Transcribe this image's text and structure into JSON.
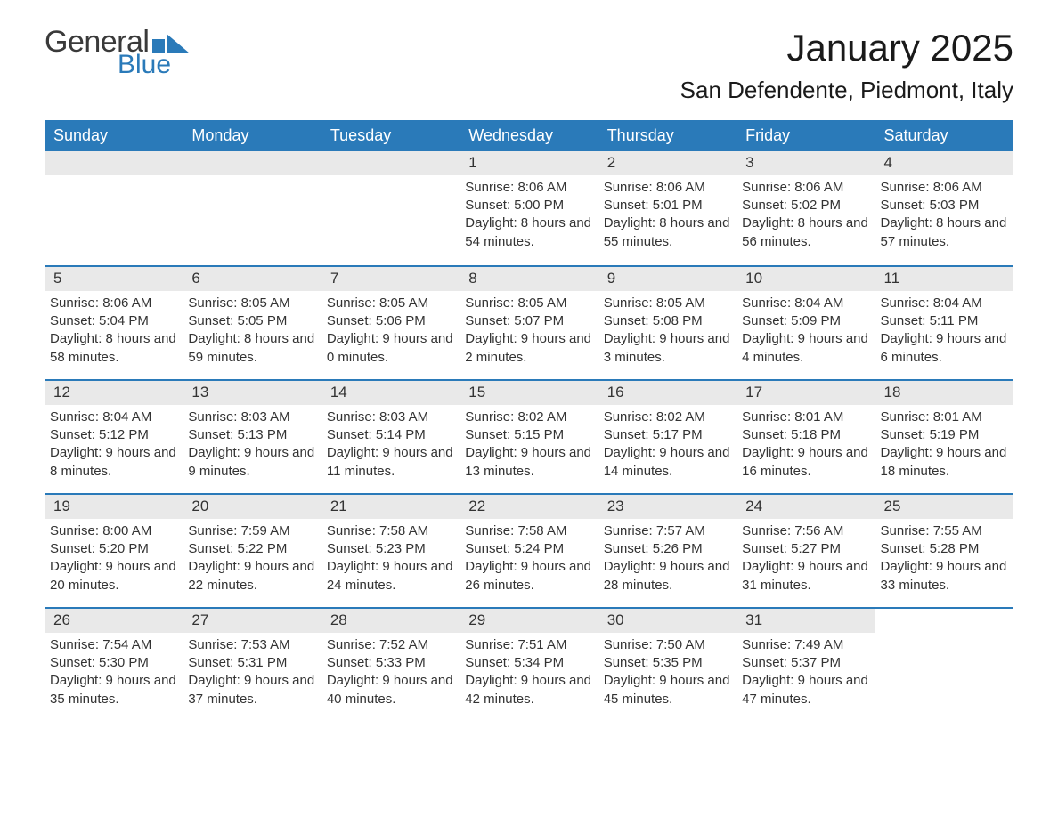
{
  "brand": {
    "word1": "General",
    "word2": "Blue",
    "flag_color": "#2a7ab9",
    "text_gray": "#3a3a3a"
  },
  "title": "January 2025",
  "location": "San Defendente, Piedmont, Italy",
  "colors": {
    "header_bg": "#2a7ab9",
    "header_text": "#ffffff",
    "band_bg": "#e9e9e9",
    "body_text": "#333333",
    "page_bg": "#ffffff",
    "week_border": "#2a7ab9"
  },
  "layout": {
    "columns": 7,
    "header_fontsize": 18,
    "title_fontsize": 42,
    "location_fontsize": 26,
    "body_fontsize": 15
  },
  "day_headers": [
    "Sunday",
    "Monday",
    "Tuesday",
    "Wednesday",
    "Thursday",
    "Friday",
    "Saturday"
  ],
  "weeks": [
    [
      {
        "blank": true
      },
      {
        "blank": true
      },
      {
        "blank": true
      },
      {
        "n": "1",
        "sr": "Sunrise: 8:06 AM",
        "ss": "Sunset: 5:00 PM",
        "dl": "Daylight: 8 hours and 54 minutes."
      },
      {
        "n": "2",
        "sr": "Sunrise: 8:06 AM",
        "ss": "Sunset: 5:01 PM",
        "dl": "Daylight: 8 hours and 55 minutes."
      },
      {
        "n": "3",
        "sr": "Sunrise: 8:06 AM",
        "ss": "Sunset: 5:02 PM",
        "dl": "Daylight: 8 hours and 56 minutes."
      },
      {
        "n": "4",
        "sr": "Sunrise: 8:06 AM",
        "ss": "Sunset: 5:03 PM",
        "dl": "Daylight: 8 hours and 57 minutes."
      }
    ],
    [
      {
        "n": "5",
        "sr": "Sunrise: 8:06 AM",
        "ss": "Sunset: 5:04 PM",
        "dl": "Daylight: 8 hours and 58 minutes."
      },
      {
        "n": "6",
        "sr": "Sunrise: 8:05 AM",
        "ss": "Sunset: 5:05 PM",
        "dl": "Daylight: 8 hours and 59 minutes."
      },
      {
        "n": "7",
        "sr": "Sunrise: 8:05 AM",
        "ss": "Sunset: 5:06 PM",
        "dl": "Daylight: 9 hours and 0 minutes."
      },
      {
        "n": "8",
        "sr": "Sunrise: 8:05 AM",
        "ss": "Sunset: 5:07 PM",
        "dl": "Daylight: 9 hours and 2 minutes."
      },
      {
        "n": "9",
        "sr": "Sunrise: 8:05 AM",
        "ss": "Sunset: 5:08 PM",
        "dl": "Daylight: 9 hours and 3 minutes."
      },
      {
        "n": "10",
        "sr": "Sunrise: 8:04 AM",
        "ss": "Sunset: 5:09 PM",
        "dl": "Daylight: 9 hours and 4 minutes."
      },
      {
        "n": "11",
        "sr": "Sunrise: 8:04 AM",
        "ss": "Sunset: 5:11 PM",
        "dl": "Daylight: 9 hours and 6 minutes."
      }
    ],
    [
      {
        "n": "12",
        "sr": "Sunrise: 8:04 AM",
        "ss": "Sunset: 5:12 PM",
        "dl": "Daylight: 9 hours and 8 minutes."
      },
      {
        "n": "13",
        "sr": "Sunrise: 8:03 AM",
        "ss": "Sunset: 5:13 PM",
        "dl": "Daylight: 9 hours and 9 minutes."
      },
      {
        "n": "14",
        "sr": "Sunrise: 8:03 AM",
        "ss": "Sunset: 5:14 PM",
        "dl": "Daylight: 9 hours and 11 minutes."
      },
      {
        "n": "15",
        "sr": "Sunrise: 8:02 AM",
        "ss": "Sunset: 5:15 PM",
        "dl": "Daylight: 9 hours and 13 minutes."
      },
      {
        "n": "16",
        "sr": "Sunrise: 8:02 AM",
        "ss": "Sunset: 5:17 PM",
        "dl": "Daylight: 9 hours and 14 minutes."
      },
      {
        "n": "17",
        "sr": "Sunrise: 8:01 AM",
        "ss": "Sunset: 5:18 PM",
        "dl": "Daylight: 9 hours and 16 minutes."
      },
      {
        "n": "18",
        "sr": "Sunrise: 8:01 AM",
        "ss": "Sunset: 5:19 PM",
        "dl": "Daylight: 9 hours and 18 minutes."
      }
    ],
    [
      {
        "n": "19",
        "sr": "Sunrise: 8:00 AM",
        "ss": "Sunset: 5:20 PM",
        "dl": "Daylight: 9 hours and 20 minutes."
      },
      {
        "n": "20",
        "sr": "Sunrise: 7:59 AM",
        "ss": "Sunset: 5:22 PM",
        "dl": "Daylight: 9 hours and 22 minutes."
      },
      {
        "n": "21",
        "sr": "Sunrise: 7:58 AM",
        "ss": "Sunset: 5:23 PM",
        "dl": "Daylight: 9 hours and 24 minutes."
      },
      {
        "n": "22",
        "sr": "Sunrise: 7:58 AM",
        "ss": "Sunset: 5:24 PM",
        "dl": "Daylight: 9 hours and 26 minutes."
      },
      {
        "n": "23",
        "sr": "Sunrise: 7:57 AM",
        "ss": "Sunset: 5:26 PM",
        "dl": "Daylight: 9 hours and 28 minutes."
      },
      {
        "n": "24",
        "sr": "Sunrise: 7:56 AM",
        "ss": "Sunset: 5:27 PM",
        "dl": "Daylight: 9 hours and 31 minutes."
      },
      {
        "n": "25",
        "sr": "Sunrise: 7:55 AM",
        "ss": "Sunset: 5:28 PM",
        "dl": "Daylight: 9 hours and 33 minutes."
      }
    ],
    [
      {
        "n": "26",
        "sr": "Sunrise: 7:54 AM",
        "ss": "Sunset: 5:30 PM",
        "dl": "Daylight: 9 hours and 35 minutes."
      },
      {
        "n": "27",
        "sr": "Sunrise: 7:53 AM",
        "ss": "Sunset: 5:31 PM",
        "dl": "Daylight: 9 hours and 37 minutes."
      },
      {
        "n": "28",
        "sr": "Sunrise: 7:52 AM",
        "ss": "Sunset: 5:33 PM",
        "dl": "Daylight: 9 hours and 40 minutes."
      },
      {
        "n": "29",
        "sr": "Sunrise: 7:51 AM",
        "ss": "Sunset: 5:34 PM",
        "dl": "Daylight: 9 hours and 42 minutes."
      },
      {
        "n": "30",
        "sr": "Sunrise: 7:50 AM",
        "ss": "Sunset: 5:35 PM",
        "dl": "Daylight: 9 hours and 45 minutes."
      },
      {
        "n": "31",
        "sr": "Sunrise: 7:49 AM",
        "ss": "Sunset: 5:37 PM",
        "dl": "Daylight: 9 hours and 47 minutes."
      },
      {
        "blank": true,
        "no_band": true
      }
    ]
  ]
}
